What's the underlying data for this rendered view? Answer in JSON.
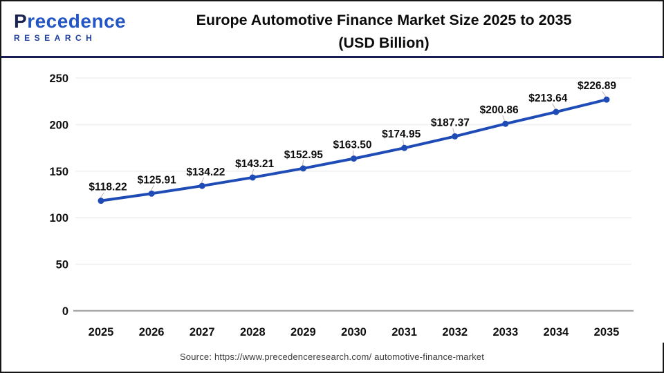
{
  "header": {
    "logo_line1": "Precedence",
    "logo_line2": "RESEARCH",
    "title_line1": "Europe Automotive Finance Market Size 2025 to 2035",
    "title_line2": "(USD Billion)"
  },
  "chart_data": {
    "type": "line",
    "title": "Europe Automotive Finance Market Size 2025 to 2035 (USD Billion)",
    "x": [
      "2025",
      "2026",
      "2027",
      "2028",
      "2029",
      "2030",
      "2031",
      "2032",
      "2033",
      "2034",
      "2035"
    ],
    "series": [
      {
        "name": "Europe Automotive Finance Market Size (USD Billion)",
        "values": [
          118.22,
          125.91,
          134.22,
          143.21,
          152.95,
          163.5,
          174.95,
          187.37,
          200.86,
          213.64,
          226.89
        ]
      }
    ],
    "point_labels": [
      "$118.22",
      "$125.91",
      "$134.22",
      "$143.21",
      "$152.95",
      "$163.50",
      "$174.95",
      "$187.37",
      "$200.86",
      "$213.64",
      "$226.89"
    ],
    "xlabel": "",
    "ylabel": "",
    "ylim": [
      0,
      250
    ],
    "yticks": [
      0,
      50,
      100,
      150,
      200,
      250
    ],
    "grid": "horizontal",
    "legend_position": "none",
    "line_color": "#1e4bb5",
    "marker_color": "#1e4bb5",
    "gridline_color": "#efefef",
    "axis_line_color": "#a9a9a9",
    "label_color": "#0d0d0d",
    "leader_line_color": "#c4b2b2"
  },
  "footer": {
    "source": "Source: https://www.precedenceresearch.com/ automotive-finance-market"
  }
}
